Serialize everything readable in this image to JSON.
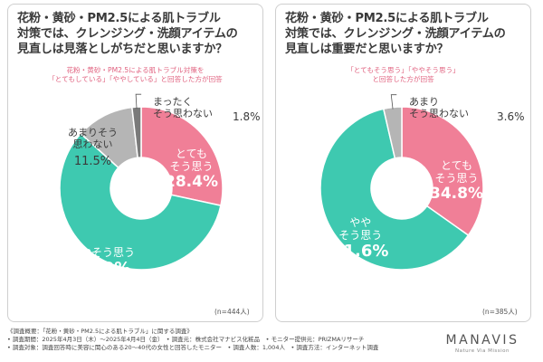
{
  "colors": {
    "pink": "#f07f97",
    "teal": "#3ec9b0",
    "gray": "#b5b5b5",
    "dark_gray": "#7a7a7a",
    "pink_text": "#e0607e"
  },
  "left": {
    "question_lines": [
      "花粉・黄砂・PM2.5による肌トラブル",
      "対策では、クレンジング・洗顔アイテムの",
      "見直しは見落としがちだと思いますか？"
    ],
    "subtitle_lines": [
      "花粉・黄砂・PM2.5による肌トラブル対策を",
      "「とてもしている」「ややしている」と回答した方が回答"
    ],
    "n_label": "(n=444人)",
    "chart_data": {
      "type": "pie",
      "categories": [
        "とてもそう思う",
        "ややそう思う",
        "あまりそう思わない",
        "まったくそう思わない"
      ],
      "values": [
        28.4,
        58.3,
        11.5,
        1.8
      ],
      "unit": "%",
      "labels": [
        {
          "lines": [
            "とても",
            "そう思う"
          ],
          "value": "28.4%"
        },
        {
          "lines": [
            "ややそう思う"
          ],
          "value": "58.3%"
        },
        {
          "lines": [
            "あまりそう",
            "思わない"
          ],
          "value": "11.5%"
        },
        {
          "lines": [
            "まったく",
            "そう思わない"
          ],
          "value": "1.8%"
        }
      ]
    }
  },
  "right": {
    "question_lines": [
      "花粉・黄砂・PM2.5による肌トラブル",
      "対策では、クレンジング・洗顔アイテムの",
      "見直しは重要だと思いますか？"
    ],
    "subtitle_lines": [
      "「とてもそう思う」「ややそう思う」",
      "と回答した方が回答"
    ],
    "n_label": "(n=385人)",
    "chart_data": {
      "type": "pie",
      "categories": [
        "とてもそう思う",
        "ややそう思う",
        "あまりそう思わない"
      ],
      "values": [
        34.8,
        61.6,
        3.6
      ],
      "unit": "%",
      "labels": [
        {
          "lines": [
            "とても",
            "そう思う"
          ],
          "value": "34.8%"
        },
        {
          "lines": [
            "やや",
            "そう思う"
          ],
          "value": "61.6%"
        },
        {
          "lines": [
            "あまり",
            "そう思わない"
          ],
          "value": "3.6%"
        }
      ]
    }
  },
  "footer": {
    "lines": [
      "《調査概要：「花粉・黄砂・PM2.5による肌トラブル」に関する調査》",
      "• 調査期間：2025年4月3日（木）〜2025年4月4日（金）　• 調査元：株式会社マナビス化粧品　• モニター提供元：PRIZMAリサーチ",
      "• 調査対象：調査回答時に美容に関心のある20〜40代の女性と回答したモニター　• 調査人数：1,004人　• 調査方法：インターネット調査"
    ]
  },
  "brand": {
    "name": "MANAVIS",
    "tagline": "Nature Via Mission"
  }
}
